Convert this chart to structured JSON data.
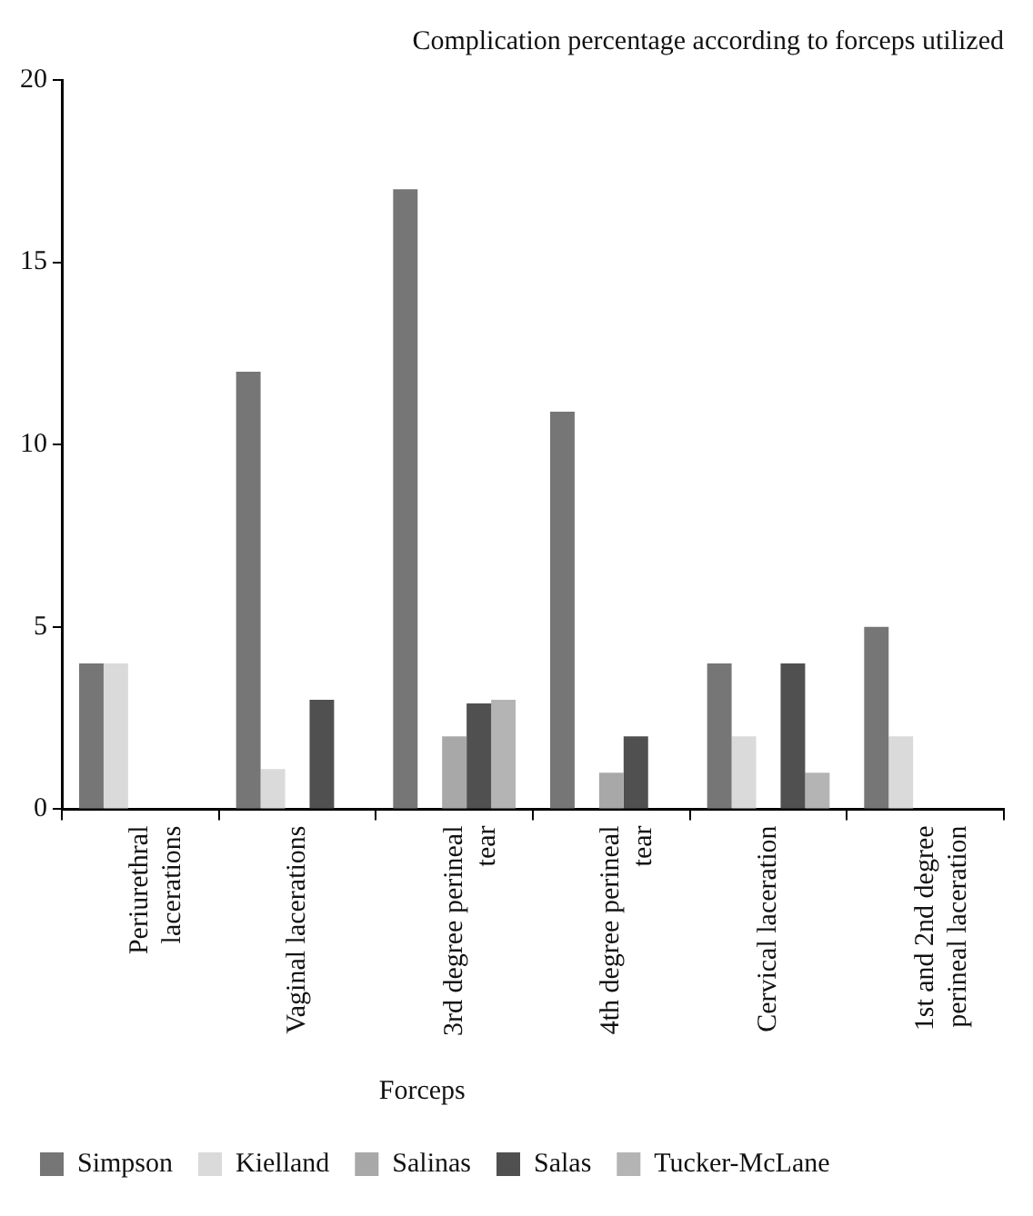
{
  "chart_data": {
    "type": "bar",
    "title": "Complication percentage according to forceps utilized",
    "legend_title": "Forceps",
    "categories": [
      "Periurethral lacerations",
      "Vaginal lacerations",
      "3rd degree perineal tear",
      "4th degree perineal tear",
      "Cervical laceration",
      "1st and 2nd degree perineal laceration"
    ],
    "series": [
      {
        "name": "Simpson",
        "color": "#767676",
        "values": [
          4,
          12,
          17,
          10.9,
          4,
          5
        ]
      },
      {
        "name": "Kielland",
        "color": "#dadada",
        "values": [
          4,
          1.1,
          0,
          0,
          2,
          2
        ]
      },
      {
        "name": "Salinas",
        "color": "#a8a8a8",
        "values": [
          0,
          0,
          2,
          1,
          0,
          0
        ]
      },
      {
        "name": "Salas",
        "color": "#505050",
        "values": [
          0,
          3,
          2.9,
          2,
          4,
          0
        ]
      },
      {
        "name": "Tucker-McLane",
        "color": "#b4b4b4",
        "values": [
          0,
          0,
          3,
          0,
          1,
          0
        ]
      }
    ],
    "ylim": [
      0,
      20
    ],
    "yticks": [
      0,
      5,
      10,
      15,
      20
    ],
    "grid": false,
    "legend": "bottom"
  }
}
